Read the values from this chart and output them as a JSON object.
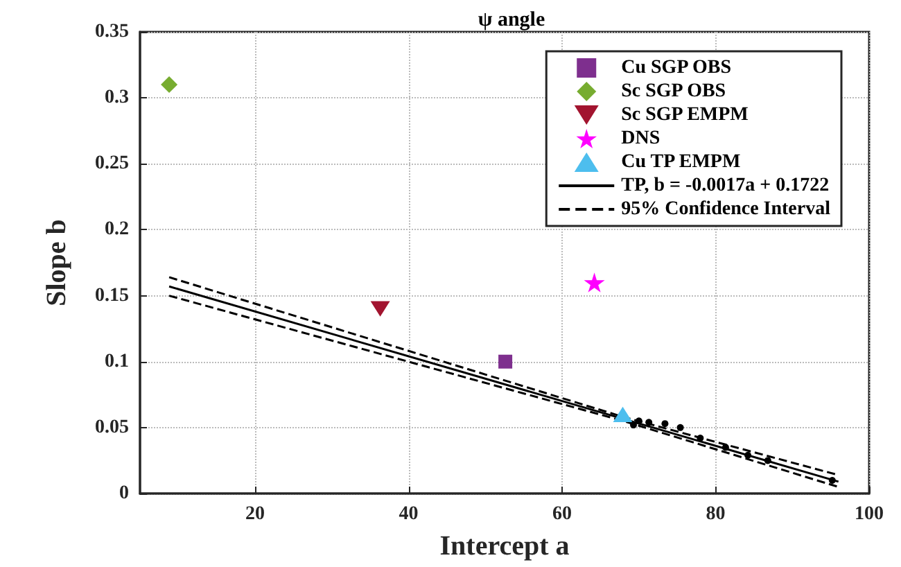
{
  "chart_data": {
    "type": "scatter",
    "title": "ψ angle",
    "xlabel": "Intercept a",
    "ylabel": "Slope b",
    "xlim": [
      5,
      100
    ],
    "xticks": [
      20,
      40,
      60,
      80,
      100
    ],
    "ylim": [
      0,
      0.35
    ],
    "yticks": [
      0,
      0.05,
      0.1,
      0.15,
      0.2,
      0.25,
      0.3,
      0.35
    ],
    "grid": true,
    "legend": "top right",
    "series": [
      {
        "name": "Cu SGP OBS",
        "marker": "square",
        "color": "#7e2f8e",
        "x": [
          52.6
        ],
        "values": [
          0.1
        ]
      },
      {
        "name": "Sc SGP OBS",
        "marker": "diamond",
        "color": "#77ac30",
        "x": [
          8.8
        ],
        "values": [
          0.31
        ]
      },
      {
        "name": "Sc SGP EMPM",
        "marker": "triangle-down",
        "color": "#a2142f",
        "x": [
          36.3
        ],
        "values": [
          0.14
        ]
      },
      {
        "name": "DNS",
        "marker": "star",
        "color": "#ff00ff",
        "x": [
          64.2
        ],
        "values": [
          0.16
        ]
      },
      {
        "name": "Cu TP EMPM",
        "marker": "triangle",
        "color": "#4dbeee",
        "x": [
          67.9
        ],
        "values": [
          0.06
        ]
      },
      {
        "name": "TP, b = -0.0017a + 0.1722",
        "type": "line",
        "marker": "none",
        "line_style": "solid",
        "color": "#000000",
        "x": [
          8.8,
          96
        ],
        "values": [
          0.157,
          0.009
        ]
      },
      {
        "name": "95% Confidence Interval",
        "type": "line",
        "marker": "none",
        "line_style": "dashed",
        "color": "#000000",
        "x": [
          8.8,
          68,
          96
        ],
        "values": [
          0.164,
          0.058,
          0.014
        ]
      },
      {
        "type": "line",
        "marker": "none",
        "line_style": "dashed",
        "color": "#000000",
        "x": [
          8.8,
          68,
          96
        ],
        "values": [
          0.15,
          0.055,
          0.005
        ]
      },
      {
        "marker": "circle",
        "color": "#000000",
        "x": [
          69.3,
          70,
          71.3,
          73.4,
          75.4,
          78,
          81.3,
          84.2,
          86.8,
          95.2
        ],
        "values": [
          0.052,
          0.055,
          0.054,
          0.053,
          0.05,
          0.042,
          0.035,
          0.029,
          0.025,
          0.01
        ]
      }
    ]
  }
}
